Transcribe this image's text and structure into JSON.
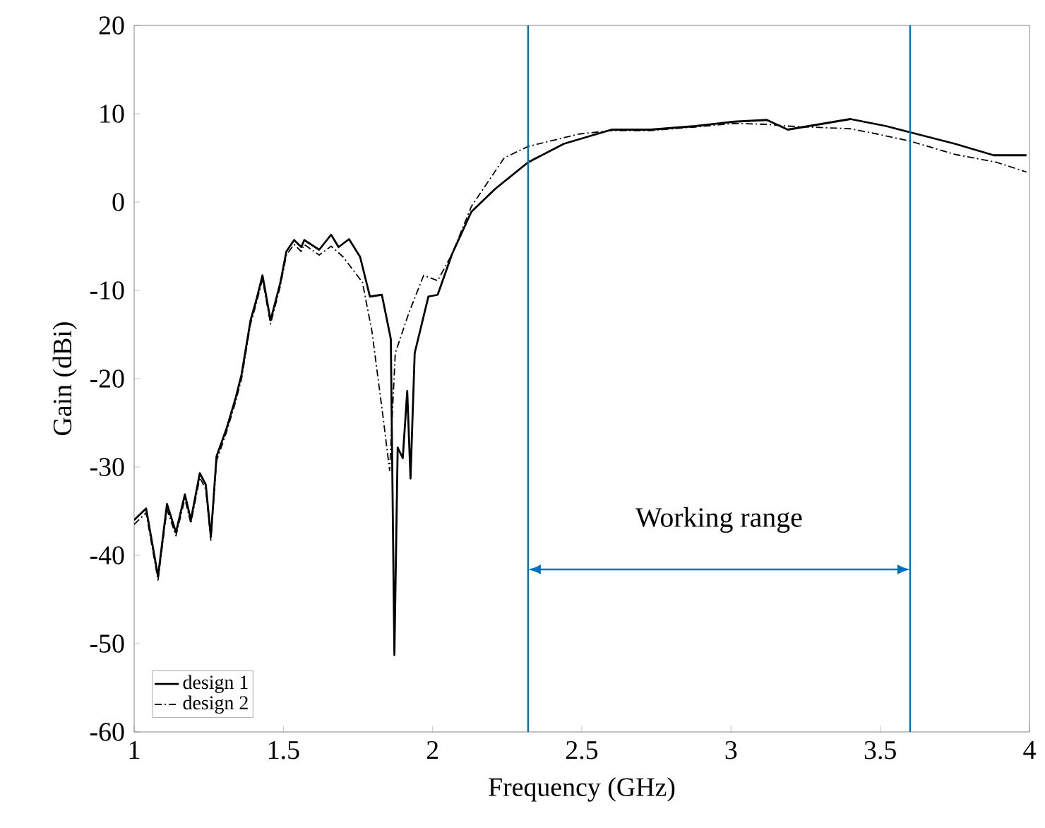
{
  "chart_data": {
    "type": "line",
    "xlabel": "Frequency (GHz)",
    "ylabel": "Gain (dBi)",
    "xlim": [
      1,
      4
    ],
    "ylim": [
      -60,
      20
    ],
    "xticks": [
      1,
      1.5,
      2,
      2.5,
      3,
      3.5,
      4
    ],
    "yticks": [
      -60,
      -50,
      -40,
      -30,
      -20,
      -10,
      0,
      10,
      20
    ],
    "grid": false,
    "legend": "bottom left",
    "marker": "none",
    "series": [
      {
        "name": "design 1",
        "color": "#000000",
        "line_style": "solid",
        "x": [
          1.0,
          1.04,
          1.08,
          1.11,
          1.14,
          1.17,
          1.19,
          1.22,
          1.24,
          1.257,
          1.276,
          1.31,
          1.34,
          1.36,
          1.39,
          1.41,
          1.43,
          1.457,
          1.49,
          1.51,
          1.536,
          1.56,
          1.57,
          1.62,
          1.66,
          1.685,
          1.72,
          1.757,
          1.79,
          1.83,
          1.86,
          1.872,
          1.883,
          1.9,
          1.915,
          1.926,
          1.94,
          1.986,
          2.017,
          2.065,
          2.13,
          2.21,
          2.32,
          2.44,
          2.49,
          2.6,
          2.73,
          2.88,
          3.01,
          3.12,
          3.19,
          3.4,
          3.52,
          3.6,
          3.75,
          3.88,
          3.99
        ],
        "values": [
          -36,
          -34.7,
          -42.4,
          -34.2,
          -37.4,
          -33.1,
          -36,
          -30.7,
          -32,
          -37.9,
          -28.8,
          -25.6,
          -22.2,
          -19.5,
          -13.4,
          -11,
          -8.3,
          -13.4,
          -9.1,
          -5.6,
          -4.3,
          -5.1,
          -4.3,
          -5.4,
          -3.7,
          -5.1,
          -4.2,
          -6.2,
          -10.7,
          -10.5,
          -15.5,
          -51.3,
          -27.8,
          -29,
          -21.4,
          -31.3,
          -17.1,
          -10.7,
          -10.5,
          -5.9,
          -1.1,
          1.5,
          4.5,
          6.6,
          7.1,
          8.2,
          8.2,
          8.6,
          9.1,
          9.3,
          8.2,
          9.4,
          8.6,
          7.9,
          6.6,
          5.3,
          5.3
        ]
      },
      {
        "name": "design 2",
        "color": "#000000",
        "line_style": "dashdot",
        "x": [
          1.0,
          1.04,
          1.08,
          1.11,
          1.14,
          1.17,
          1.19,
          1.22,
          1.24,
          1.257,
          1.276,
          1.31,
          1.34,
          1.36,
          1.39,
          1.41,
          1.43,
          1.457,
          1.49,
          1.51,
          1.536,
          1.56,
          1.57,
          1.62,
          1.66,
          1.7,
          1.765,
          1.797,
          1.835,
          1.856,
          1.875,
          1.92,
          1.97,
          2.017,
          2.065,
          2.13,
          2.24,
          2.32,
          2.49,
          2.6,
          2.73,
          2.88,
          3.01,
          3.12,
          3.19,
          3.4,
          3.49,
          3.6,
          3.75,
          3.89,
          3.99
        ],
        "values": [
          -36.5,
          -35.2,
          -42.8,
          -34.8,
          -37.8,
          -33.6,
          -36.4,
          -31.2,
          -32.5,
          -38.3,
          -29.3,
          -26,
          -22.6,
          -20,
          -13.8,
          -11.4,
          -8.7,
          -13.8,
          -9.5,
          -6,
          -4.8,
          -5.6,
          -4.8,
          -6,
          -5,
          -6.2,
          -9.1,
          -14.7,
          -24.6,
          -30.4,
          -17.1,
          -12.6,
          -8.3,
          -8.9,
          -5.9,
          -0.5,
          5,
          6.3,
          7.7,
          8.1,
          8.1,
          8.5,
          8.9,
          8.8,
          8.6,
          8.3,
          7.7,
          6.9,
          5.4,
          4.5,
          3.4
        ]
      }
    ],
    "ref_lines": [
      {
        "axis": "x",
        "value": 2.32,
        "color": "#0072bd"
      },
      {
        "axis": "x",
        "value": 3.6,
        "color": "#0072bd"
      }
    ],
    "annotations": [
      "Working range"
    ]
  }
}
